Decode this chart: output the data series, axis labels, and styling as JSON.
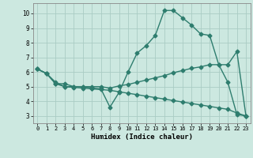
{
  "bg_color": "#cce8e0",
  "grid_color": "#aaccc4",
  "line_color": "#2e7d6e",
  "line_width": 1.0,
  "marker": "D",
  "marker_size": 2.5,
  "xlabel": "Humidex (Indice chaleur)",
  "xlim": [
    -0.5,
    23.5
  ],
  "ylim": [
    2.5,
    10.7
  ],
  "yticks": [
    3,
    4,
    5,
    6,
    7,
    8,
    9,
    10
  ],
  "xticks": [
    0,
    1,
    2,
    3,
    4,
    5,
    6,
    7,
    8,
    9,
    10,
    11,
    12,
    13,
    14,
    15,
    16,
    17,
    18,
    19,
    20,
    21,
    22,
    23
  ],
  "line1_x": [
    0,
    1,
    2,
    3,
    4,
    5,
    6,
    7,
    8,
    9,
    10,
    11,
    12,
    13,
    14,
    15,
    16,
    17,
    18,
    19,
    20,
    21,
    22,
    23
  ],
  "line1_y": [
    6.2,
    5.9,
    5.3,
    5.0,
    5.0,
    5.0,
    4.9,
    4.85,
    3.6,
    4.6,
    6.0,
    7.3,
    7.8,
    8.5,
    10.2,
    10.2,
    9.7,
    9.2,
    8.6,
    8.5,
    6.5,
    5.3,
    3.1,
    3.0
  ],
  "line2_x": [
    0,
    1,
    2,
    3,
    4,
    5,
    6,
    7,
    8,
    9,
    10,
    11,
    12,
    13,
    14,
    15,
    16,
    17,
    18,
    19,
    20,
    21,
    22,
    23
  ],
  "line2_y": [
    6.2,
    5.9,
    5.2,
    5.2,
    5.0,
    5.0,
    5.0,
    5.0,
    4.9,
    5.05,
    5.15,
    5.3,
    5.45,
    5.6,
    5.75,
    5.95,
    6.1,
    6.25,
    6.35,
    6.5,
    6.5,
    6.5,
    7.4,
    3.0
  ],
  "line3_x": [
    0,
    1,
    2,
    3,
    4,
    5,
    6,
    7,
    8,
    9,
    10,
    11,
    12,
    13,
    14,
    15,
    16,
    17,
    18,
    19,
    20,
    21,
    22,
    23
  ],
  "line3_y": [
    6.2,
    5.9,
    5.2,
    5.0,
    4.95,
    4.9,
    4.85,
    4.8,
    4.75,
    4.65,
    4.55,
    4.45,
    4.35,
    4.25,
    4.15,
    4.05,
    3.95,
    3.85,
    3.75,
    3.65,
    3.55,
    3.45,
    3.2,
    3.0
  ]
}
